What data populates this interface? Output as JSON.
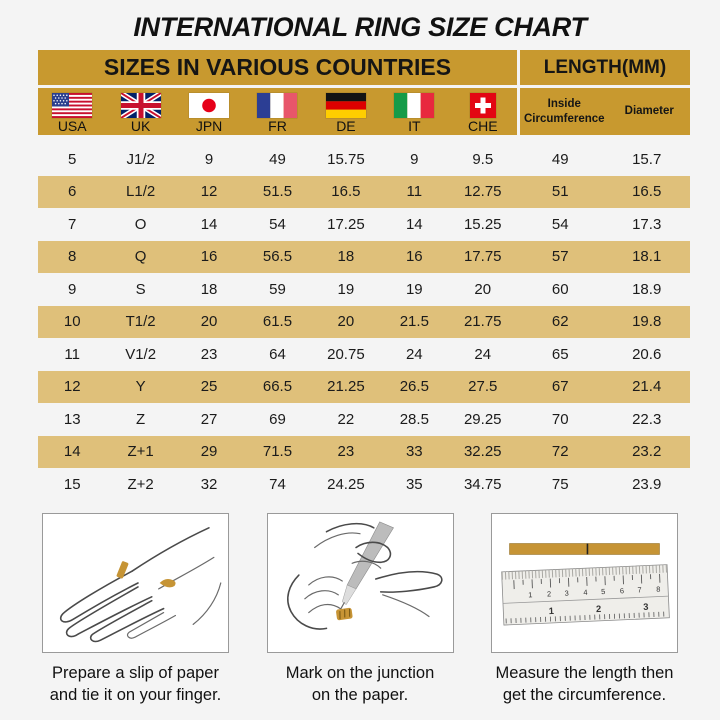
{
  "title": "INTERNATIONAL RING SIZE CHART",
  "table": {
    "group_headers": {
      "sizes": "SIZES IN VARIOUS COUNTRIES",
      "length": "LENGTH(MM)"
    },
    "countries": [
      {
        "code": "USA"
      },
      {
        "code": "UK"
      },
      {
        "code": "JPN"
      },
      {
        "code": "FR"
      },
      {
        "code": "DE"
      },
      {
        "code": "IT"
      },
      {
        "code": "CHE"
      }
    ],
    "length_columns": [
      {
        "label": "Inside Circumference"
      },
      {
        "label": "Diameter"
      }
    ]
  },
  "chart_data": {
    "type": "table",
    "title": "INTERNATIONAL RING SIZE CHART",
    "column_groups": [
      "SIZES IN VARIOUS COUNTRIES",
      "LENGTH(MM)"
    ],
    "columns": [
      "USA",
      "UK",
      "JPN",
      "FR",
      "DE",
      "IT",
      "CHE",
      "Inside Circumference",
      "Diameter"
    ],
    "rows": [
      [
        "5",
        "J1/2",
        "9",
        "49",
        "15.75",
        "9",
        "9.5",
        "49",
        "15.7"
      ],
      [
        "6",
        "L1/2",
        "12",
        "51.5",
        "16.5",
        "11",
        "12.75",
        "51",
        "16.5"
      ],
      [
        "7",
        "O",
        "14",
        "54",
        "17.25",
        "14",
        "15.25",
        "54",
        "17.3"
      ],
      [
        "8",
        "Q",
        "16",
        "56.5",
        "18",
        "16",
        "17.75",
        "57",
        "18.1"
      ],
      [
        "9",
        "S",
        "18",
        "59",
        "19",
        "19",
        "20",
        "60",
        "18.9"
      ],
      [
        "10",
        "T1/2",
        "20",
        "61.5",
        "20",
        "21.5",
        "21.75",
        "62",
        "19.8"
      ],
      [
        "11",
        "V1/2",
        "23",
        "64",
        "20.75",
        "24",
        "24",
        "65",
        "20.6"
      ],
      [
        "12",
        "Y",
        "25",
        "66.5",
        "21.25",
        "26.5",
        "27.5",
        "67",
        "21.4"
      ],
      [
        "13",
        "Z",
        "27",
        "69",
        "22",
        "28.5",
        "29.25",
        "70",
        "22.3"
      ],
      [
        "14",
        "Z+1",
        "29",
        "71.5",
        "23",
        "33",
        "32.25",
        "72",
        "23.2"
      ],
      [
        "15",
        "Z+2",
        "32",
        "74",
        "24.25",
        "35",
        "34.75",
        "75",
        "23.9"
      ]
    ]
  },
  "panels": [
    {
      "caption_line1": "Prepare a slip of paper",
      "caption_line2": "and tie it on your finger."
    },
    {
      "caption_line1": "Mark on the junction",
      "caption_line2": "on the paper."
    },
    {
      "caption_line1": "Measure the length then",
      "caption_line2": "get the circumference."
    }
  ],
  "ruler": {
    "cm": [
      "1",
      "2",
      "3",
      "4",
      "5",
      "6",
      "7",
      "8"
    ],
    "inch": [
      "1",
      "2",
      "3"
    ]
  },
  "colors": {
    "header_gold": "#c8992f",
    "stripe_gold": "#dfc07a",
    "paper_strip_gold": "#c69435",
    "background": "#f4f4f4"
  }
}
